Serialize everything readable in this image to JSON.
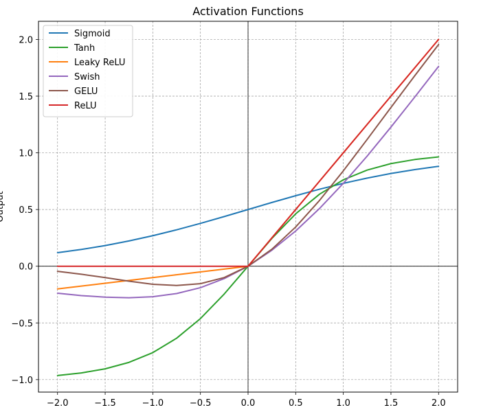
{
  "chart_data": {
    "type": "line",
    "title": "Activation Functions",
    "xlabel": "",
    "ylabel": "Output",
    "xlim": [
      -2.2,
      2.2
    ],
    "ylim": [
      -1.11,
      2.16
    ],
    "x_ticks": [
      -2.0,
      -1.5,
      -1.0,
      -0.5,
      0.0,
      0.5,
      1.0,
      1.5,
      2.0
    ],
    "y_ticks": [
      -1.0,
      -0.5,
      0.0,
      0.5,
      1.0,
      1.5,
      2.0
    ],
    "x_tick_labels": [
      "−2.0",
      "−1.5",
      "−1.0",
      "−0.5",
      "0.0",
      "0.5",
      "1.0",
      "1.5",
      "2.0"
    ],
    "y_tick_labels": [
      "−1.0",
      "−0.5",
      "0.0",
      "0.5",
      "1.0",
      "1.5",
      "2.0"
    ],
    "grid": true,
    "grid_style": "dashed",
    "zero_lines": true,
    "legend_position": "upper-left",
    "x": [
      -2.0,
      -1.75,
      -1.5,
      -1.25,
      -1.0,
      -0.75,
      -0.5,
      -0.25,
      0.0,
      0.25,
      0.5,
      0.75,
      1.0,
      1.25,
      1.5,
      1.75,
      2.0
    ],
    "series": [
      {
        "name": "Sigmoid",
        "color": "#1f77b4",
        "values": [
          0.119,
          0.148,
          0.182,
          0.223,
          0.269,
          0.321,
          0.378,
          0.438,
          0.5,
          0.562,
          0.622,
          0.679,
          0.731,
          0.777,
          0.818,
          0.852,
          0.881
        ]
      },
      {
        "name": "Tanh",
        "color": "#2ca02c",
        "values": [
          -0.964,
          -0.941,
          -0.905,
          -0.848,
          -0.762,
          -0.635,
          -0.462,
          -0.245,
          0.0,
          0.245,
          0.462,
          0.635,
          0.762,
          0.848,
          0.905,
          0.941,
          0.964
        ]
      },
      {
        "name": "Leaky ReLU",
        "color": "#ff7f0e",
        "values": [
          -0.2,
          -0.175,
          -0.15,
          -0.125,
          -0.1,
          -0.075,
          -0.05,
          -0.025,
          0.0,
          0.25,
          0.5,
          0.75,
          1.0,
          1.25,
          1.5,
          1.75,
          2.0
        ]
      },
      {
        "name": "Swish",
        "color": "#9467bd",
        "values": [
          -0.238,
          -0.259,
          -0.273,
          -0.278,
          -0.269,
          -0.241,
          -0.189,
          -0.109,
          0.0,
          0.141,
          0.311,
          0.509,
          0.731,
          0.971,
          1.227,
          1.492,
          1.762
        ]
      },
      {
        "name": "GELU",
        "color": "#8c564b",
        "values": [
          -0.045,
          -0.071,
          -0.1,
          -0.132,
          -0.159,
          -0.17,
          -0.154,
          -0.1,
          0.0,
          0.15,
          0.346,
          0.58,
          0.841,
          1.118,
          1.4,
          1.68,
          1.955
        ]
      },
      {
        "name": "ReLU",
        "color": "#d62728",
        "values": [
          0.0,
          0.0,
          0.0,
          0.0,
          0.0,
          0.0,
          0.0,
          0.0,
          0.0,
          0.25,
          0.5,
          0.75,
          1.0,
          1.25,
          1.5,
          1.75,
          2.0
        ]
      }
    ]
  }
}
